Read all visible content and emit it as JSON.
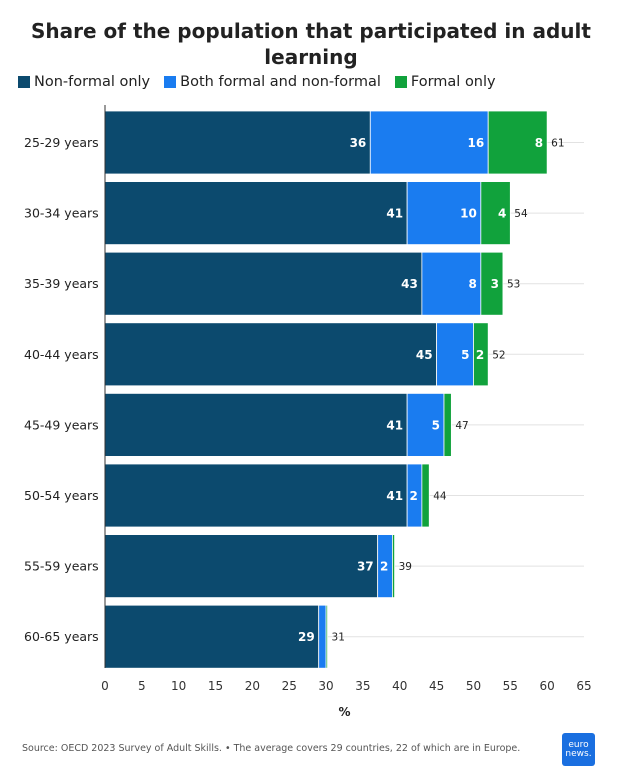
{
  "chart_data": {
    "type": "bar",
    "orientation": "horizontal",
    "stacked": true,
    "title": "Share of the population that participated in adult learning",
    "xlabel": "%",
    "ylabel": "",
    "xlim": [
      0,
      65
    ],
    "x_ticks": [
      "0",
      "5",
      "10",
      "15",
      "20",
      "25",
      "30",
      "35",
      "40",
      "45",
      "50",
      "55",
      "60",
      "65"
    ],
    "grid": true,
    "legend_position": "top-left",
    "categories": [
      "25-29 years",
      "30-34 years",
      "35-39 years",
      "40-44 years",
      "45-49 years",
      "50-54 years",
      "55-59 years",
      "60-65 years"
    ],
    "series": [
      {
        "name": "Non-formal only",
        "color": "#0c4a6e",
        "values": [
          36,
          41,
          43,
          45,
          41,
          41,
          37,
          29
        ]
      },
      {
        "name": "Both formal and non-formal",
        "color": "#1a7cf0",
        "values": [
          16,
          10,
          8,
          5,
          5,
          2,
          2,
          1
        ]
      },
      {
        "name": "Formal only",
        "color": "#11a23c",
        "values": [
          8,
          4,
          3,
          2,
          1,
          1,
          0.3,
          0.2
        ]
      }
    ],
    "segment_labels": [
      [
        "36",
        "16",
        "8"
      ],
      [
        "41",
        "10",
        "4"
      ],
      [
        "43",
        "8",
        "3"
      ],
      [
        "45",
        "5",
        "2"
      ],
      [
        "41",
        "5",
        ""
      ],
      [
        "41",
        "2",
        ""
      ],
      [
        "37",
        "2",
        ""
      ],
      [
        "29",
        "",
        ""
      ]
    ],
    "totals": [
      61,
      54,
      53,
      52,
      47,
      44,
      39,
      31
    ]
  },
  "footer": {
    "source": "Source: OECD 2023 Survey of Adult Skills. • The average covers 29 countries, 22 of which are in Europe."
  },
  "logo": {
    "line1": "euro",
    "line2": "news."
  }
}
